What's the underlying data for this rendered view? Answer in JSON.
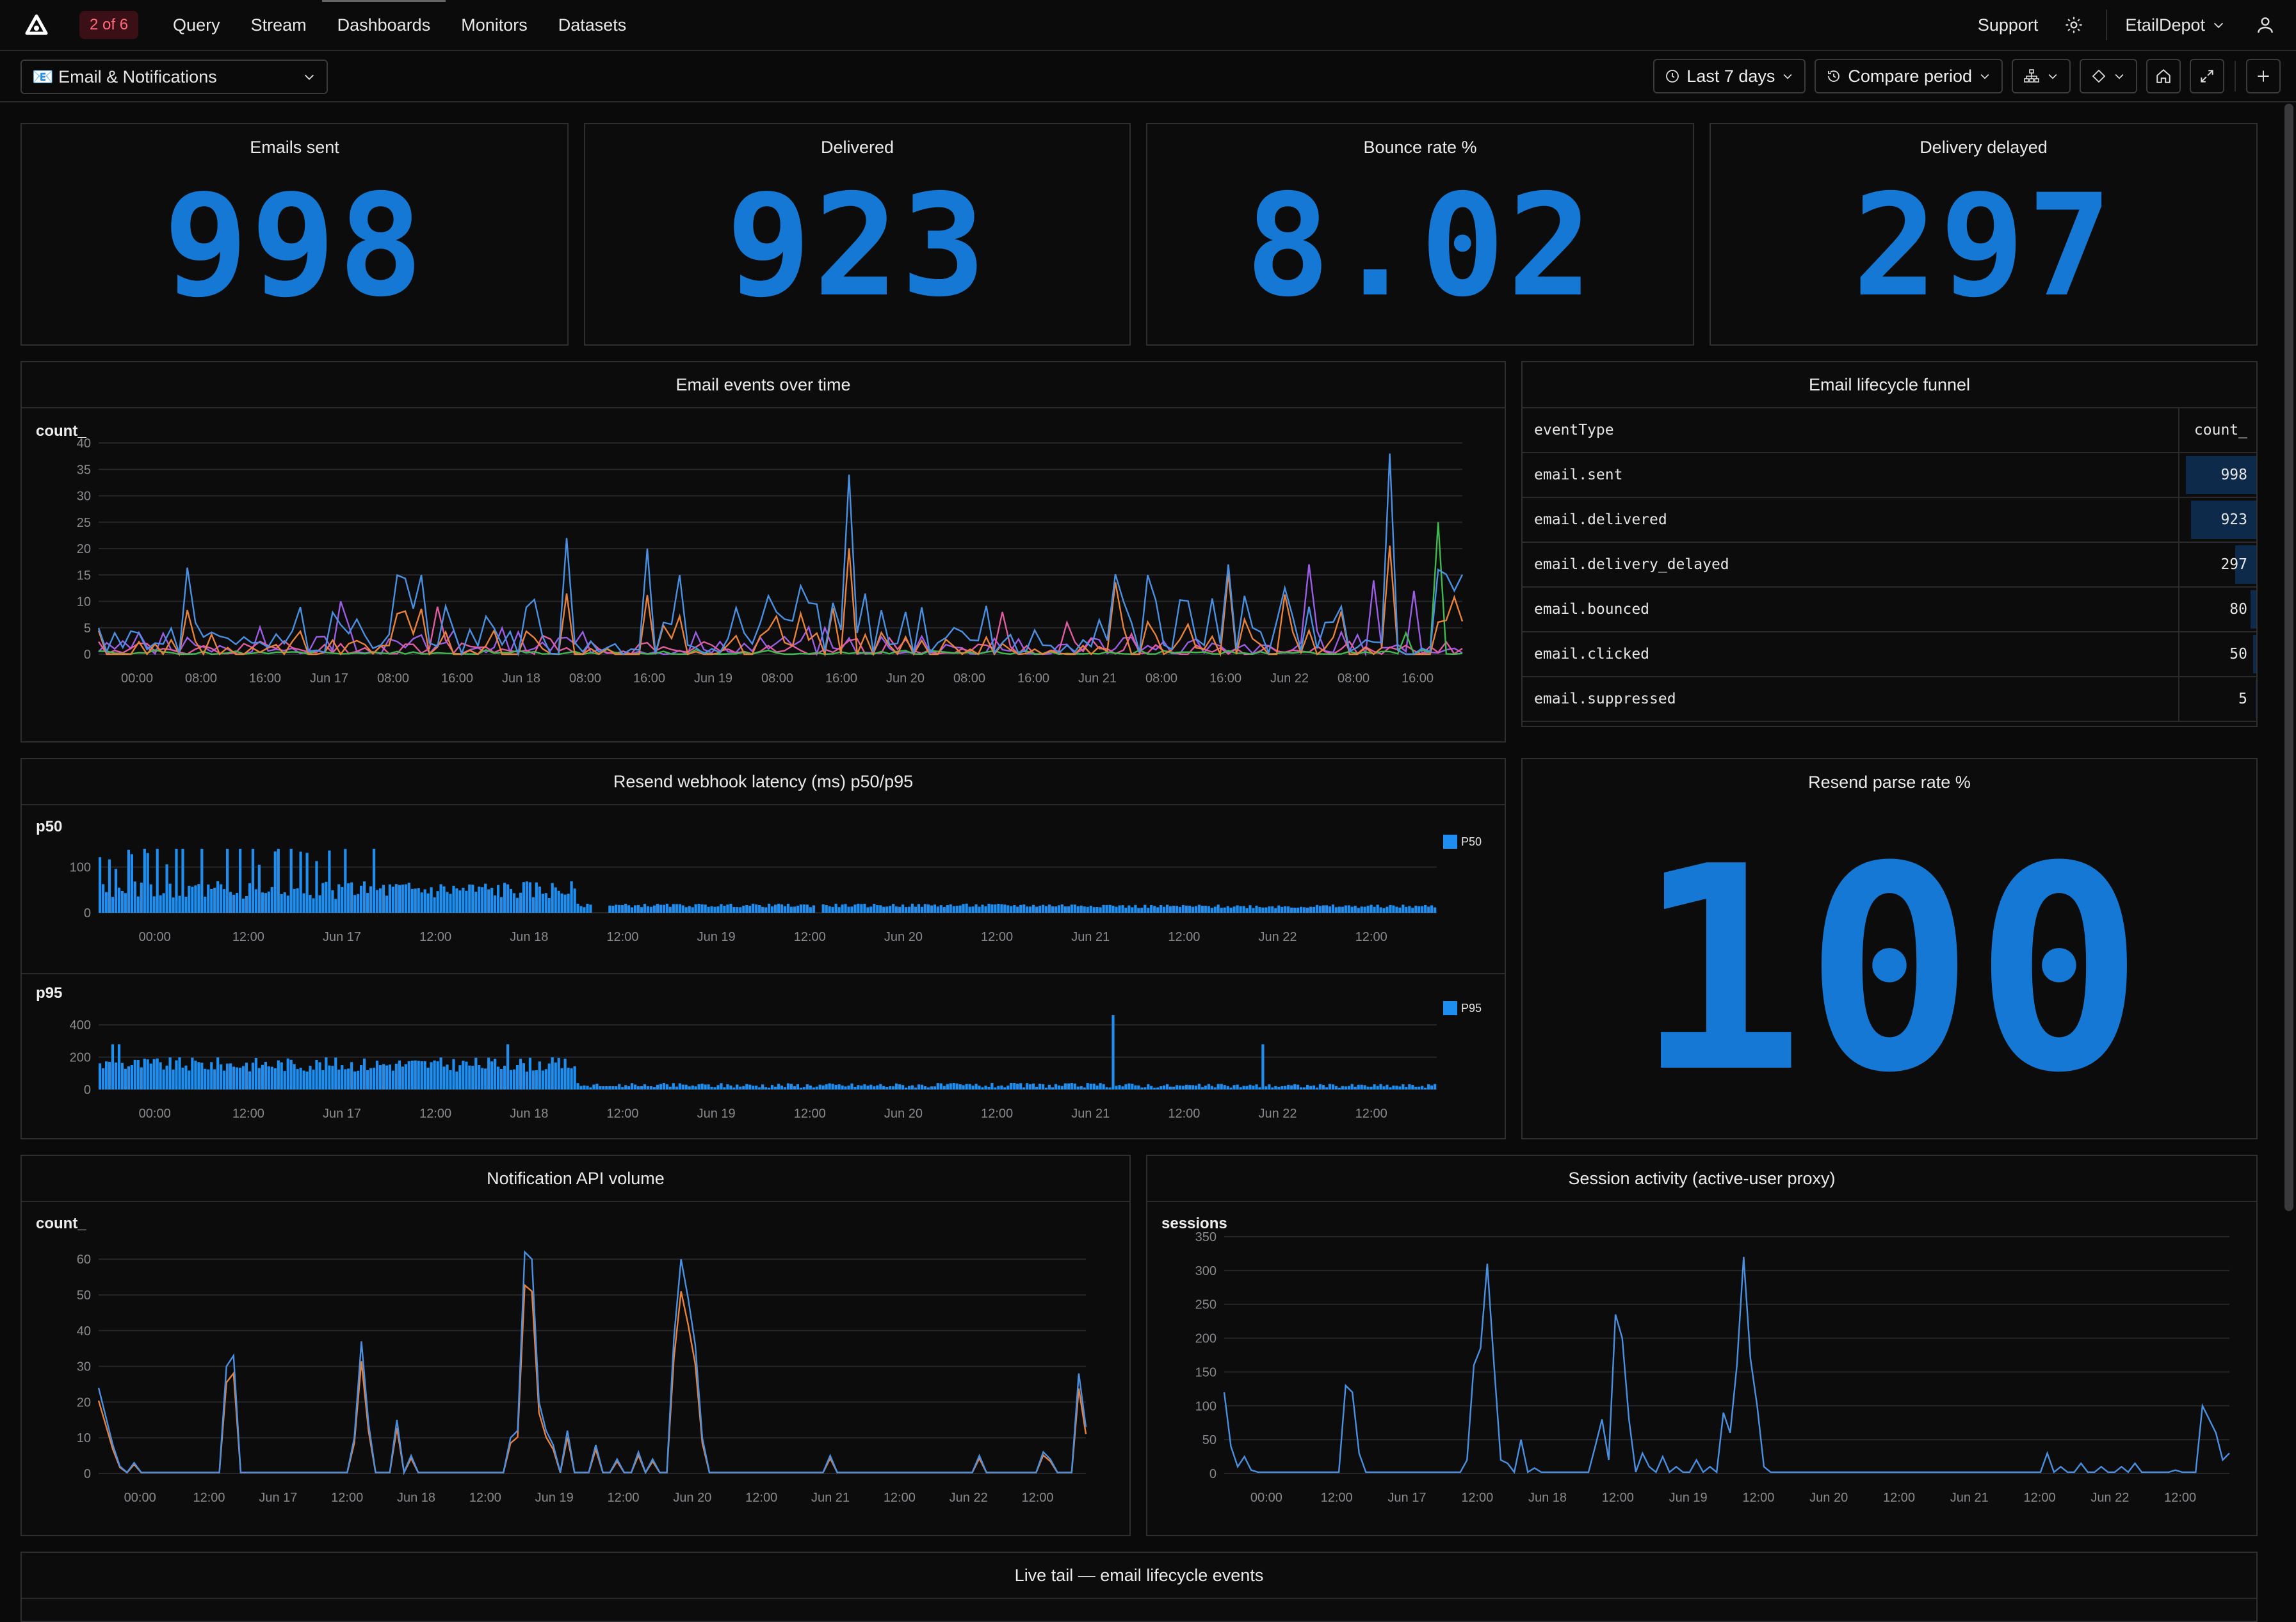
{
  "topbar": {
    "badge": "2 of 6",
    "nav": [
      "Query",
      "Stream",
      "Dashboards",
      "Monitors",
      "Datasets"
    ],
    "active_nav": "Dashboards",
    "support": "Support",
    "org": "EtailDepot",
    "icons": [
      "logo-icon",
      "gear-icon",
      "chevron-down-icon",
      "user-icon"
    ]
  },
  "toolbar": {
    "dashboard": "📧 Email & Notifications",
    "time_range": "Last 7 days",
    "compare": "Compare period"
  },
  "stats": [
    {
      "title": "Emails sent",
      "value": "998"
    },
    {
      "title": "Delivered",
      "value": "923"
    },
    {
      "title": "Bounce rate %",
      "value": "8.02"
    },
    {
      "title": "Delivery delayed",
      "value": "297"
    }
  ],
  "email_events": {
    "title": "Email events over time",
    "ylabel": "count_",
    "yticks": [
      "0",
      "5",
      "10",
      "15",
      "20",
      "25",
      "30",
      "35",
      "40"
    ],
    "xticks": [
      "00:00",
      "08:00",
      "16:00",
      "Jun 17",
      "08:00",
      "16:00",
      "Jun 18",
      "08:00",
      "16:00",
      "Jun 19",
      "08:00",
      "16:00",
      "Jun 20",
      "08:00",
      "16:00",
      "Jun 21",
      "08:00",
      "16:00",
      "Jun 22",
      "08:00",
      "16:00"
    ]
  },
  "funnel": {
    "title": "Email lifecycle funnel",
    "col1": "eventType",
    "col2": "count_",
    "rows": [
      {
        "type": "email.sent",
        "count": "998"
      },
      {
        "type": "email.delivered",
        "count": "923"
      },
      {
        "type": "email.delivery_delayed",
        "count": "297"
      },
      {
        "type": "email.bounced",
        "count": "80"
      },
      {
        "type": "email.clicked",
        "count": "50"
      },
      {
        "type": "email.suppressed",
        "count": "5"
      }
    ]
  },
  "latency": {
    "title": "Resend webhook latency (ms) p50/p95",
    "p50": {
      "label": "p50",
      "legend": "P50",
      "yticks": [
        "0",
        "100"
      ]
    },
    "p95": {
      "label": "p95",
      "legend": "P95",
      "yticks": [
        "0",
        "200",
        "400"
      ]
    },
    "xticks": [
      "00:00",
      "12:00",
      "Jun 17",
      "12:00",
      "Jun 18",
      "12:00",
      "Jun 19",
      "12:00",
      "Jun 20",
      "12:00",
      "Jun 21",
      "12:00",
      "Jun 22",
      "12:00"
    ]
  },
  "parse_rate": {
    "title": "Resend parse rate %",
    "value": "100"
  },
  "notif": {
    "title": "Notification API volume",
    "ylabel": "count_",
    "yticks": [
      "0",
      "10",
      "20",
      "30",
      "40",
      "50",
      "60"
    ],
    "xticks": [
      "00:00",
      "12:00",
      "Jun 17",
      "12:00",
      "Jun 18",
      "12:00",
      "Jun 19",
      "12:00",
      "Jun 20",
      "12:00",
      "Jun 21",
      "12:00",
      "Jun 22",
      "12:00"
    ]
  },
  "sessions": {
    "title": "Session activity (active-user proxy)",
    "ylabel": "sessions",
    "yticks": [
      "0",
      "50",
      "100",
      "150",
      "200",
      "250",
      "300",
      "350"
    ],
    "xticks": [
      "00:00",
      "12:00",
      "Jun 17",
      "12:00",
      "Jun 18",
      "12:00",
      "Jun 19",
      "12:00",
      "Jun 20",
      "12:00",
      "Jun 21",
      "12:00",
      "Jun 22",
      "12:00"
    ]
  },
  "live_tail": {
    "title": "Live tail — email lifecycle events"
  },
  "colors": {
    "accent": "#1478d4",
    "orange": "#e8823a",
    "purple": "#9b5de5",
    "pink": "#e05ca0",
    "green": "#3fb950"
  }
}
